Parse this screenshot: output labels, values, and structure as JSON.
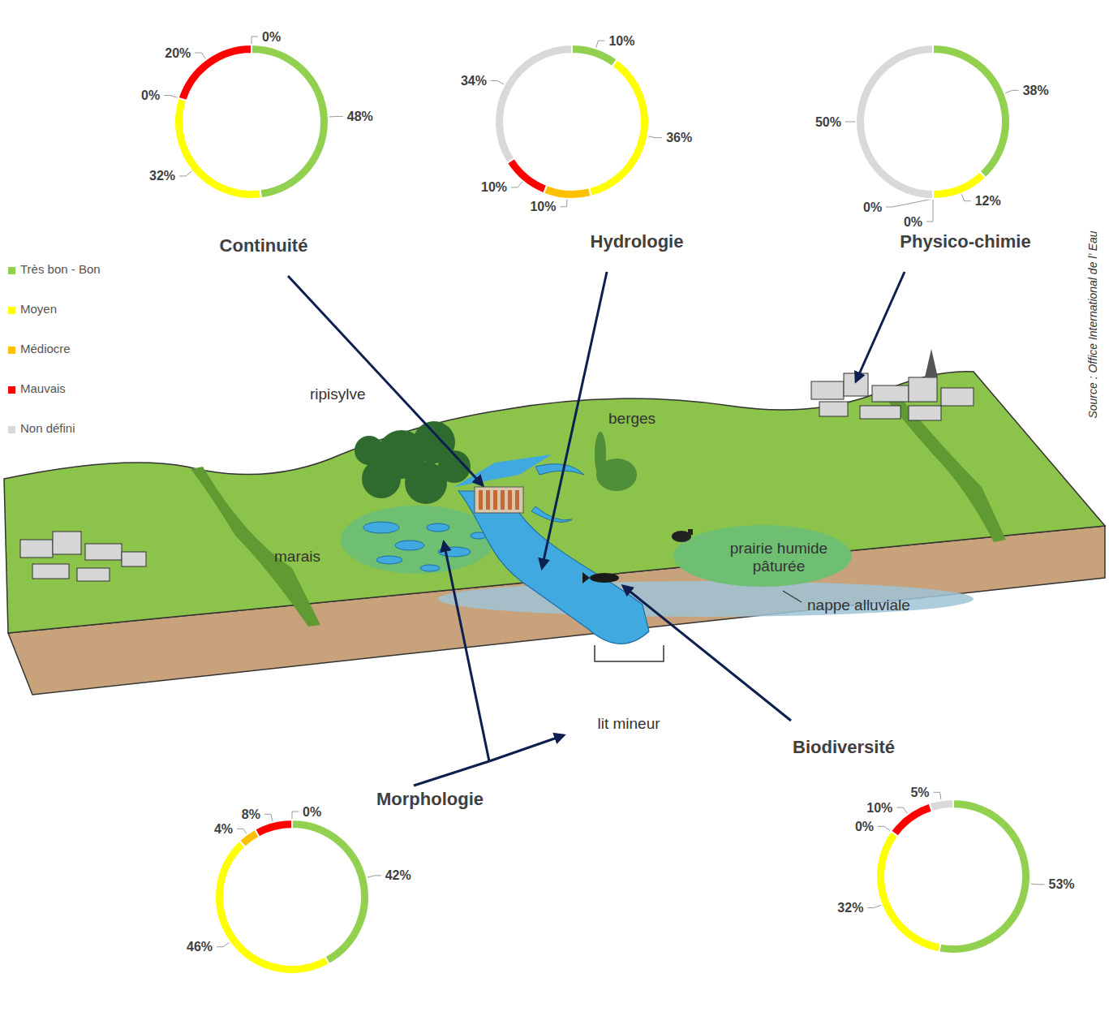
{
  "legend": "left",
  "chart_data": [
    {
      "type": "pie",
      "title": "Continuité",
      "categories": [
        "Très bon - Bon",
        "Moyen",
        "Médiocre",
        "Mauvais",
        "Non défini"
      ],
      "values": [
        48,
        32,
        0,
        20,
        0
      ],
      "value_labels": [
        "48%",
        "32%",
        "0%",
        "20%",
        "0%"
      ],
      "colors": [
        "#92d050",
        "#ffff00",
        "#ffc000",
        "#ff0000",
        "#d9d9d9"
      ],
      "data_labels": true
    },
    {
      "type": "pie",
      "title": "Hydrologie",
      "categories": [
        "Très bon - Bon",
        "Moyen",
        "Médiocre",
        "Mauvais",
        "Non défini"
      ],
      "values": [
        10,
        36,
        10,
        10,
        34
      ],
      "value_labels": [
        "10%",
        "36%",
        "10%",
        "10%",
        "34%"
      ],
      "colors": [
        "#92d050",
        "#ffff00",
        "#ffc000",
        "#ff0000",
        "#d9d9d9"
      ],
      "data_labels": true
    },
    {
      "type": "pie",
      "title": "Physico-chimie",
      "categories": [
        "Très bon - Bon",
        "Moyen",
        "Médiocre",
        "Mauvais",
        "Non défini"
      ],
      "values": [
        38,
        12,
        0,
        0,
        50
      ],
      "value_labels": [
        "38%",
        "12%",
        "0%",
        "0%",
        "50%"
      ],
      "colors": [
        "#92d050",
        "#ffff00",
        "#ffc000",
        "#ff0000",
        "#d9d9d9"
      ],
      "data_labels": true
    },
    {
      "type": "pie",
      "title": "Morphologie",
      "categories": [
        "Très bon - Bon",
        "Moyen",
        "Médiocre",
        "Mauvais",
        "Non défini"
      ],
      "values": [
        42,
        46,
        4,
        8,
        0
      ],
      "value_labels": [
        "42%",
        "46%",
        "4%",
        "8%",
        "0%"
      ],
      "colors": [
        "#92d050",
        "#ffff00",
        "#ffc000",
        "#ff0000",
        "#d9d9d9"
      ],
      "data_labels": true
    },
    {
      "type": "pie",
      "title": "Biodiversité",
      "categories": [
        "Très bon - Bon",
        "Moyen",
        "Médiocre",
        "Mauvais",
        "Non défini"
      ],
      "values": [
        53,
        32,
        0,
        10,
        5
      ],
      "value_labels": [
        "53%",
        "32%",
        "0%",
        "10%",
        "5%"
      ],
      "colors": [
        "#92d050",
        "#ffff00",
        "#ffc000",
        "#ff0000",
        "#d9d9d9"
      ],
      "data_labels": true
    }
  ],
  "landscape_labels": [
    "ripisylve",
    "berges",
    "marais",
    "prairie humide pâturée",
    "nappe alluviale",
    "lit mineur"
  ],
  "source": "Source : Office International de l’ Eau"
}
